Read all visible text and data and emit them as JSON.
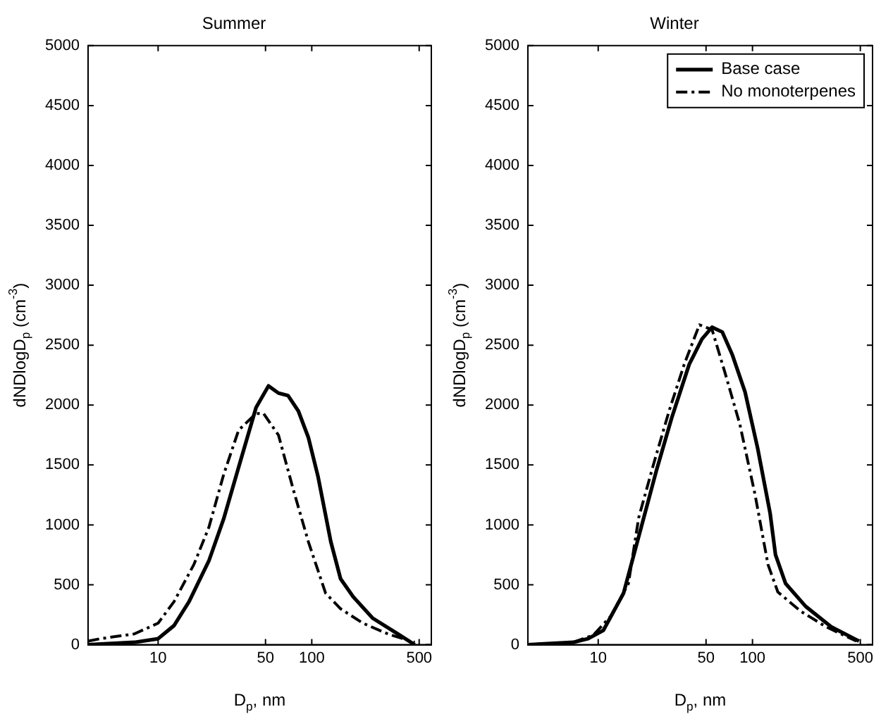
{
  "chart_data": [
    {
      "type": "line",
      "title": "Summer",
      "xlabel": "D$_{p}$, nm",
      "ylabel": "dNDlogD$_{p}$ (cm$^{-3}$)",
      "log": "x",
      "xlim": [
        3.5,
        600
      ],
      "xticks": [
        10,
        50,
        100,
        500
      ],
      "ylim": [
        0,
        5000
      ],
      "yticks": [
        0,
        500,
        1000,
        1500,
        2000,
        2500,
        3000,
        3500,
        4000,
        4500,
        5000
      ],
      "legend": false,
      "series": [
        {
          "color": "#000000",
          "line_style": "solid",
          "x": [
            3.5,
            7.0,
            10,
            12.7,
            15.9,
            21.4,
            26.7,
            33.4,
            43.4,
            52.3,
            60.7,
            70,
            81.8,
            95,
            110,
            133,
            154,
            186,
            250,
            363,
            468
          ],
          "values": [
            0,
            20,
            50,
            160,
            360,
            700,
            1050,
            1480,
            1980,
            2160,
            2100,
            2080,
            1950,
            1730,
            1400,
            860,
            550,
            400,
            220,
            90,
            0
          ]
        },
        {
          "color": "#000000",
          "line_style": "dashed",
          "x": [
            3.5,
            4.2,
            7.0,
            10,
            12.7,
            17.1,
            21.4,
            26.7,
            33.4,
            43.4,
            48.5,
            60.7,
            76,
            95,
            123,
            154,
            215,
            313,
            468
          ],
          "values": [
            30,
            50,
            90,
            180,
            360,
            670,
            980,
            1420,
            1790,
            1930,
            1930,
            1750,
            1290,
            860,
            430,
            300,
            180,
            90,
            20
          ]
        }
      ]
    },
    {
      "type": "line",
      "title": "Winter",
      "xlabel": "D$_{p}$, nm",
      "ylabel": "dNDlogD$_{p}$ (cm$^{-3}$)",
      "log": "x",
      "xlim": [
        3.5,
        600
      ],
      "xticks": [
        10,
        50,
        100,
        500
      ],
      "ylim": [
        0,
        5000
      ],
      "yticks": [
        0,
        500,
        1000,
        1500,
        2000,
        2500,
        3000,
        3500,
        4000,
        4500,
        5000
      ],
      "legend": "top right",
      "series": [
        {
          "name": "Base case",
          "color": "#000000",
          "line_style": "solid",
          "x": [
            3.5,
            6.9,
            8.6,
            10.8,
            14.6,
            19.0,
            23.8,
            29.9,
            38.9,
            47,
            54.7,
            63.7,
            74,
            89.5,
            108,
            130,
            141,
            164,
            221,
            323,
            490
          ],
          "values": [
            0,
            20,
            50,
            120,
            430,
            980,
            1450,
            1890,
            2340,
            2550,
            2650,
            2610,
            2420,
            2110,
            1640,
            1100,
            750,
            510,
            320,
            150,
            30
          ]
        },
        {
          "name": "No monoterpenes",
          "color": "#000000",
          "line_style": "dashed",
          "x": [
            3.5,
            6.9,
            9.3,
            12.1,
            15.7,
            18.3,
            23,
            28.8,
            36.1,
            45.3,
            54.7,
            66,
            82.8,
            104,
            126,
            146,
            205,
            299,
            471
          ],
          "values": [
            0,
            20,
            80,
            240,
            510,
            1060,
            1520,
            1950,
            2340,
            2670,
            2630,
            2280,
            1840,
            1250,
            670,
            440,
            280,
            150,
            30
          ]
        }
      ]
    }
  ]
}
